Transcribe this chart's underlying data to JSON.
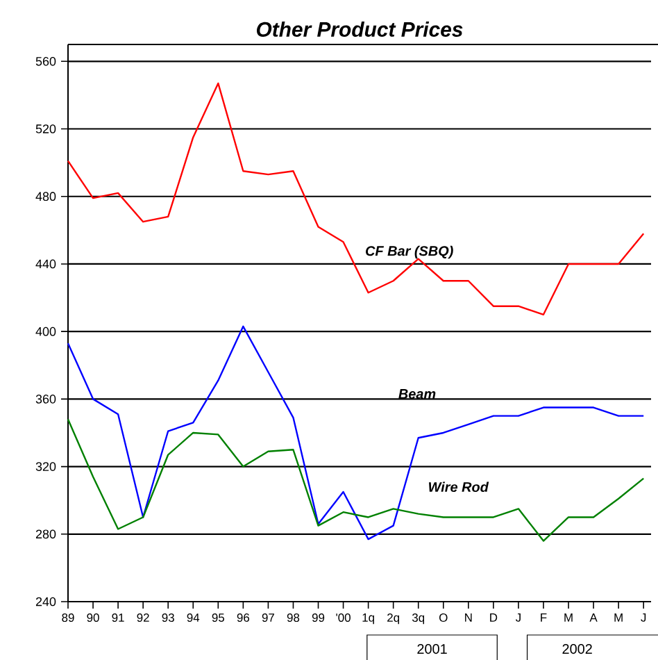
{
  "chart_data": {
    "type": "line",
    "title": "Other Product Prices",
    "categories": [
      "89",
      "90",
      "91",
      "92",
      "93",
      "94",
      "95",
      "96",
      "97",
      "98",
      "99",
      "'00",
      "1q",
      "2q",
      "3q",
      "O",
      "N",
      "D",
      "J",
      "F",
      "M",
      "A",
      "M",
      "J"
    ],
    "series": [
      {
        "name": "CF Bar (SBQ)",
        "color": "#ff0000",
        "values": [
          501,
          479,
          482,
          465,
          468,
          515,
          547,
          495,
          493,
          495,
          462,
          453,
          423,
          430,
          443,
          430,
          430,
          415,
          415,
          410,
          440,
          440,
          440,
          458
        ]
      },
      {
        "name": "Beam",
        "color": "#0000ff",
        "values": [
          393,
          360,
          351,
          290,
          341,
          346,
          371,
          403,
          376,
          349,
          286,
          305,
          277,
          285,
          337,
          340,
          345,
          350,
          350,
          355,
          355,
          355,
          350,
          350
        ]
      },
      {
        "name": "Wire Rod",
        "color": "#008000",
        "values": [
          348,
          314,
          283,
          290,
          327,
          340,
          339,
          320,
          329,
          330,
          285,
          293,
          290,
          295,
          292,
          290,
          290,
          290,
          295,
          276,
          290,
          290,
          301,
          313
        ]
      }
    ],
    "ylim": [
      240,
      570
    ],
    "yticks": [
      240,
      280,
      320,
      360,
      400,
      440,
      480,
      520,
      560
    ],
    "grid": "y",
    "marker": "none",
    "annotations": [
      "2001",
      "2002"
    ]
  }
}
